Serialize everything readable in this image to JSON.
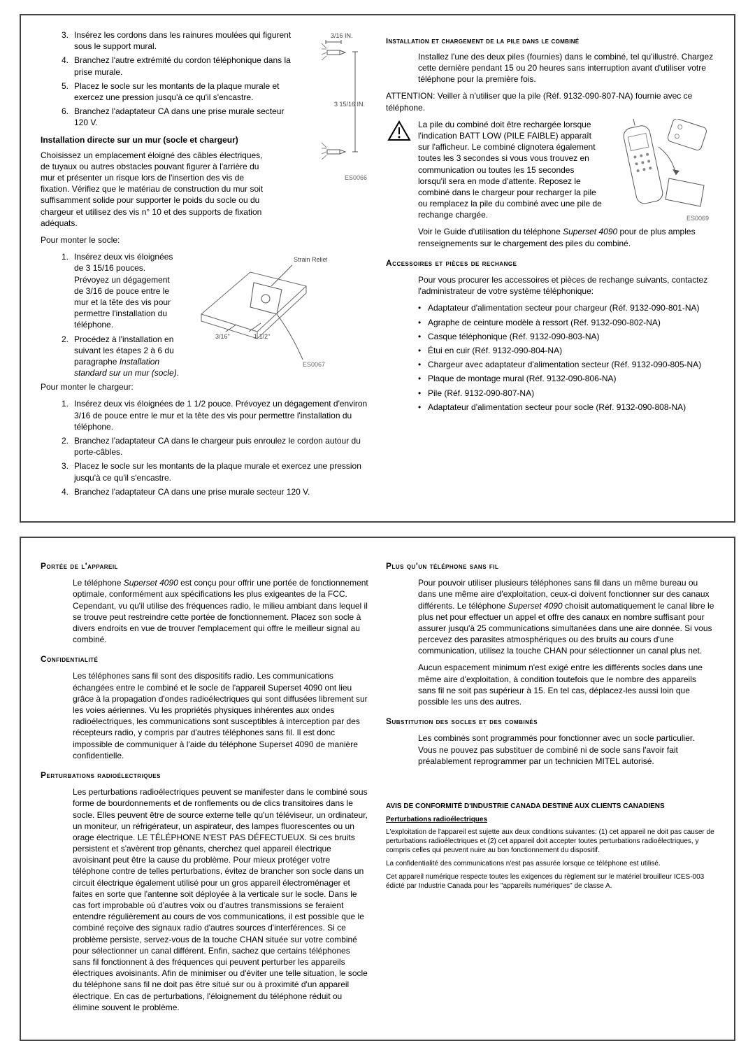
{
  "left": {
    "list1": [
      {
        "n": "3.",
        "t": "Insérez les cordons dans les rainures moulées qui figurent sous le support mural."
      },
      {
        "n": "4.",
        "t": "Branchez l'autre extrémité du cordon téléphonique dans la prise murale."
      },
      {
        "n": "5.",
        "t": "Placez le socle sur les montants de la plaque murale et exercez une pression jusqu'à ce qu'il s'encastre."
      },
      {
        "n": "6.",
        "t": "Branchez l'adaptateur CA dans une prise murale secteur 120 V."
      }
    ],
    "head1": "Installation directe sur un mur (socle et chargeur)",
    "para1": "Choisissez un emplacement éloigné des câbles électriques, de tuyaux ou autres obstacles pouvant figurer à l'arrière du mur et présenter un risque lors de l'insertion des vis de fixation. Vérifiez que le matériau de construction du mur soit suffisamment solide pour supporter le poids du socle ou du chargeur et utilisez des vis n° 10 et des supports de fixation adéquats.",
    "para2": "Pour monter le socle:",
    "list2_1": "Insérez deux vis éloignées de 3 15/16 pouces. Prévoyez un dégagement de 3/16 de pouce entre le mur et la tête des vis pour permettre l'installation du téléphone.",
    "list2_2a": "Procédez à l'installation en suivant les étapes 2 à 6 du paragraphe ",
    "list2_2b": "Installation standard sur un mur (socle)",
    "list2_2c": ".",
    "para3": "Pour monter le chargeur:",
    "list3": [
      {
        "n": "1.",
        "t": "Insérez deux vis éloignées de 1 1/2 pouce. Prévoyez un dégagement d'environ 3/16 de pouce entre le mur et la tête des vis pour permettre l'installation du téléphone."
      },
      {
        "n": "2.",
        "t": "Branchez l'adaptateur CA dans le chargeur puis enroulez le cordon autour du porte-câbles."
      },
      {
        "n": "3.",
        "t": "Placez le socle sur les montants de la plaque murale et exercez une pression jusqu'à ce qu'il s'encastre."
      },
      {
        "n": "4.",
        "t": "Branchez l'adaptateur CA dans une prise murale secteur 120 V."
      }
    ],
    "fig1_top": "3/16 IN.",
    "fig1_mid": "3 15/16 IN.",
    "fig1_cap": "ES0066",
    "fig2_relief": "Strain\nRelief",
    "fig2_a": "3/16\"",
    "fig2_b": "1 1/2\"",
    "fig2_cap": "ES0067"
  },
  "right": {
    "head1": "Installation et chargement de la pile dans le combiné",
    "para1": "Installez l'une des deux piles (fournies) dans le combiné, tel qu'illustré. Chargez cette dernière pendant 15 ou 20 heures sans interruption avant d'utiliser votre téléphone pour la première fois.",
    "att": "ATTENTION: Veiller à n'utiliser que la pile (Réf. 9132-090-807-NA) fournie avec ce téléphone.",
    "para2": "La pile du combiné doit être rechargée lorsque l'indication BATT LOW (PILE FAIBLE) apparaît sur l'afficheur. Le combiné clignotera également toutes les 3 secondes si vous vous trouvez en communication ou toutes les 15 secondes lorsqu'il sera en mode d'attente. Reposez le combiné dans le chargeur pour recharger la pile ou remplacez la pile du combiné avec une pile de rechange chargée.",
    "para3a": "Voir le Guide d'utilisation du téléphone ",
    "para3b": "Superset 4090",
    "para3c": " pour de plus amples renseignements sur le chargement des piles du combiné.",
    "fig3_cap": "ES0069",
    "head2": "Accessoires et pièces de rechange",
    "para4": "Pour vous procurer les accessoires et pièces de rechange suivants, contactez l'administrateur de votre système téléphonique:",
    "bullets": [
      "Adaptateur d'alimentation secteur pour chargeur (Réf. 9132-090-801-NA)",
      "Agraphe de ceinture modèle à ressort (Réf. 9132-090-802-NA)",
      "Casque téléphonique (Réf. 9132-090-803-NA)",
      "Étui en cuir (Réf. 9132-090-804-NA)",
      "Chargeur avec adaptateur d'alimentation secteur (Réf. 9132-090-805-NA)",
      "Plaque de montage mural (Réf. 9132-090-806-NA)",
      "Pile (Réf. 9132-090-807-NA)",
      "Adaptateur d'alimentation secteur pour socle (Réf. 9132-090-808-NA)"
    ]
  },
  "lower_left": {
    "h1": "Portée de l'appareil",
    "p1a": "Le téléphone ",
    "p1b": "Superset 4090",
    "p1c": " est conçu pour offrir une portée de fonctionnement optimale, conformément aux spécifications les plus exigeantes de la FCC. Cependant, vu qu'il utilise des fréquences radio, le milieu ambiant dans lequel il se trouve peut restreindre cette portée de fonctionnement. Placez son socle à divers endroits en vue de trouver l'emplacement qui offre le meilleur signal au combiné.",
    "h2": "Confidentialité",
    "p2": "Les téléphones sans fil sont des dispositifs radio. Les communications échangées entre le combiné et le socle de l'appareil Superset 4090 ont lieu grâce à la propagation d'ondes radioélectriques qui sont diffusées librement sur les voies aériennes. Vu les propriétés physiques inhérentes aux ondes radioélectriques, les communications sont susceptibles à interception par des récepteurs radio, y compris par d'autres téléphones sans fil. Il est donc impossible de communiquer à l'aide du téléphone Superset 4090 de manière confidentielle.",
    "h3": "Perturbations radioélectriques",
    "p3": "Les perturbations radioélectriques peuvent se manifester dans le combiné sous forme de bourdonnements et de ronflements ou de clics transitoires dans le socle. Elles peuvent être de source externe telle qu'un téléviseur, un ordinateur, un moniteur, un réfrigérateur, un aspirateur, des lampes fluorescentes ou un orage électrique. LE TÉLÉPHONE N'EST PAS DÉFECTUEUX. Si ces bruits persistent et s'avèrent trop gênants, cherchez quel appareil électrique avoisinant peut être la cause du problème. Pour mieux protéger votre téléphone contre de telles perturbations, évitez de brancher son socle dans un circuit électrique également utilisé pour un gros appareil électroménager et faites en sorte que l'antenne soit déployée à la verticale sur le socle. Dans le cas fort improbable où d'autres voix ou d'autres transmissions se feraient entendre régulièrement au cours de vos communications, il est possible que le combiné reçoive des signaux radio d'autres sources d'interférences. Si ce problème persiste, servez-vous de la touche CHAN située sur votre combiné pour sélectionner un canal différent. Enfin, sachez que certains téléphones sans fil fonctionnent à des fréquences qui peuvent perturber les appareils électriques avoisinants. Afin de minimiser ou d'éviter une telle situation, le socle du téléphone sans fil ne doit pas être situé sur ou à proximité d'un appareil électrique. En cas de perturbations, l'éloignement du téléphone réduit ou élimine souvent le problème."
  },
  "lower_right": {
    "h1": "Plus qu'un téléphone sans fil",
    "p1a": "Pour pouvoir utiliser plusieurs téléphones sans fil dans un même bureau ou dans une même aire d'exploitation, ceux-ci doivent fonctionner sur des canaux différents. Le téléphone ",
    "p1b": "Superset 4090",
    "p1c": " choisit automatiquement le canal libre le plus net pour effectuer un appel et offre des canaux en nombre suffisant pour assurer jusqu'à 25 communications simultanées dans une aire donnée. Si vous percevez des parasites atmosphériques ou des bruits au cours d'une communication, utilisez la touche CHAN pour sélectionner un canal plus net.",
    "p2": "Aucun espacement minimum n'est exigé entre les différents socles dans une même aire d'exploitation, à condition toutefois que le nombre des appareils sans fil ne soit pas supérieur à 15. En tel cas, déplacez-les aussi loin que possible les uns des autres.",
    "h2": "Substitution des socles et des combinés",
    "p3": "Les combinés sont programmés pour fonctionner avec un socle particulier. Vous ne pouvez pas substituer de combiné ni de socle sans l'avoir fait préalablement reprogrammer par un technicien MITEL autorisé.",
    "legal_t": "AVIS DE CONFORMITÉ D'INDUSTRIE CANADA DESTINÉ AUX CLIENTS CANADIENS",
    "legal_sub": "Perturbations radioélectriques",
    "legal_p1": "L'exploitation de l'appareil est sujette aux deux conditions suivantes: (1) cet appareil ne doit pas causer de perturbations radioélectriques et (2) cet appareil doit accepter toutes perturbations radioélectriques, y compris celles qui peuvent nuire au bon fonctionnement du dispositif.",
    "legal_p2": "La confidentialité des communications n'est pas assurée lorsque ce téléphone est utilisé.",
    "legal_p3": "Cet appareil numérique respecte toutes les exigences du règlement sur le matériel brouilleur ICES-003 édicté par Industrie Canada pour les \"appareils numériques\" de classe A."
  }
}
